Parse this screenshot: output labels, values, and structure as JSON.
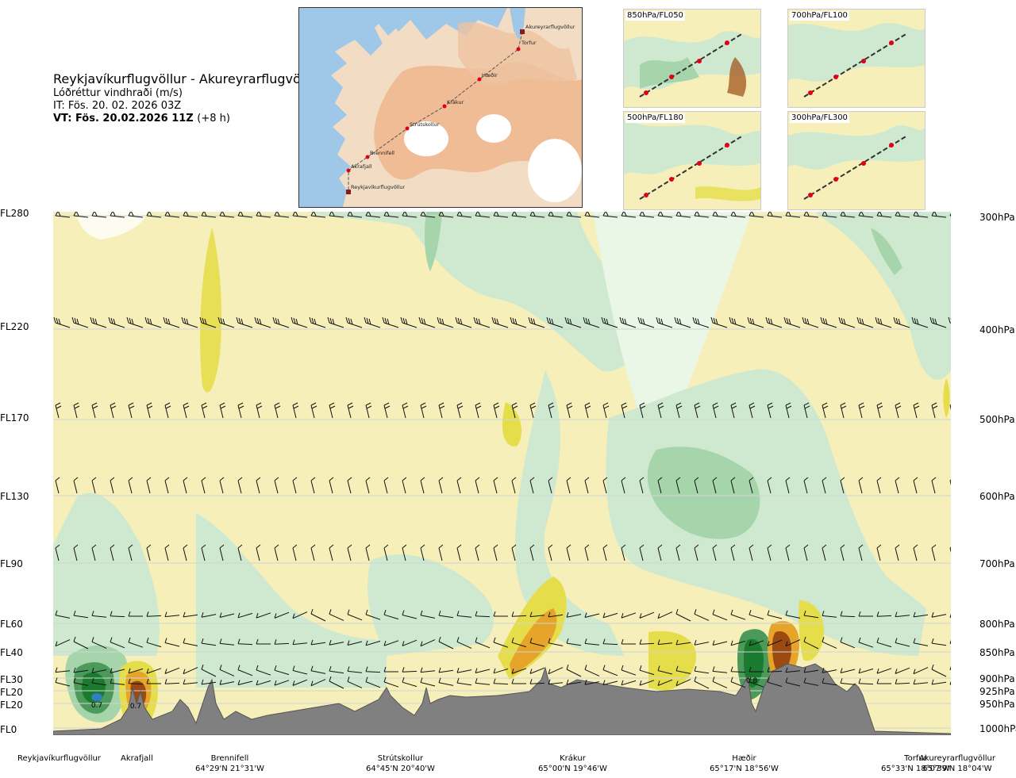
{
  "header": {
    "route": "Reykjavíkurflugvöllur - Akureyrarflugvöllur",
    "parameter": "Lóðréttur vindhraði (m/s)",
    "initial_time": "IT: Fös. 20. 02. 2026 03Z",
    "valid_time": "VT: Fös. 20.02.2026 11Z",
    "lead_time": "(+8 h)"
  },
  "route_map": {
    "waypoints": [
      {
        "name": "Akureyrarflugvöllur"
      },
      {
        "name": "Torfur"
      },
      {
        "name": "Hæðir"
      },
      {
        "name": "Krákur"
      },
      {
        "name": "Strútskollur"
      },
      {
        "name": "Brennifell"
      },
      {
        "name": "Akrafjall"
      },
      {
        "name": "Reykjavíkurflugvöllur"
      }
    ],
    "colors": {
      "sea": "#9fc7e8",
      "land_low": "#f3dcc4",
      "land_high": "#efb48a",
      "ice": "#ffffff",
      "route": "#555555",
      "waypoint": "#e0001a"
    }
  },
  "thumbnails": [
    {
      "label": "850hPa/FL050"
    },
    {
      "label": "700hPa/FL100"
    },
    {
      "label": "500hPa/FL180"
    },
    {
      "label": "300hPa/FL300"
    }
  ],
  "levels_left": [
    "FL280",
    "FL220",
    "FL170",
    "FL130",
    "FL90",
    "FL60",
    "FL40",
    "FL30",
    "FL20",
    "FL20",
    "FL0"
  ],
  "levels_right": [
    "300hPa",
    "400hPa",
    "500hPa",
    "600hPa",
    "700hPa",
    "800hPa",
    "850hPa",
    "900hPa",
    "925hPa",
    "950hPa",
    "1000hPa"
  ],
  "bottom_points": [
    {
      "name": "Reykjavíkurflugvöllur",
      "coords": ""
    },
    {
      "name": "Akrafjall",
      "coords": ""
    },
    {
      "name": "Brennifell",
      "coords": "64°29'N 21°31'W"
    },
    {
      "name": "Strútskollur",
      "coords": "64°45'N 20°40'W"
    },
    {
      "name": "Krákur",
      "coords": "65°00'N 19°46'W"
    },
    {
      "name": "Hæðir",
      "coords": "65°17'N 18°56'W"
    },
    {
      "name": "Torfur",
      "coords": "65°33'N 18°07'W"
    },
    {
      "name": "Akureyrarflugvöllur",
      "coords": "65°39'N 18°04'W"
    }
  ],
  "field_labels": [
    "0.7",
    "0.7",
    "0.8"
  ],
  "colors": {
    "neutral": "#f6efb9",
    "pale_green": "#cfe9d0",
    "mid_green": "#a6d4ab",
    "dark_green": "#4c9a5a",
    "deepest_green": "#1a7a2e",
    "blue": "#2f7fc1",
    "yellow": "#e6dd4a",
    "orange": "#e6a52a",
    "brown": "#9c4a12",
    "terrain": "#808080"
  }
}
